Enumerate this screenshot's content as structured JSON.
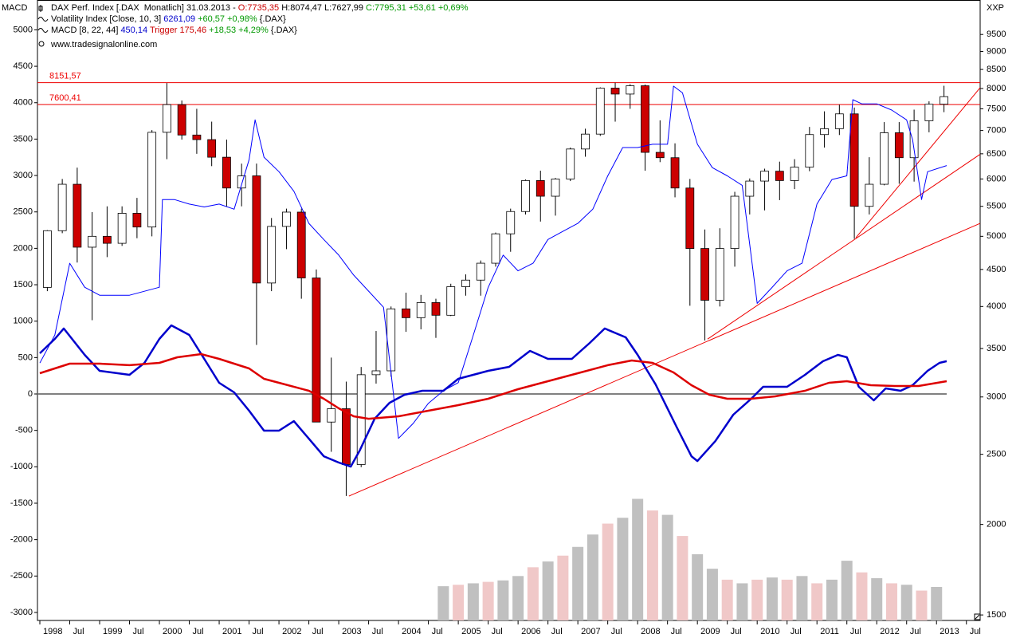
{
  "chart_data": {
    "type": "candlestick",
    "axis_title_left": "MACD",
    "axis_title_right": "XXP",
    "legend": [
      [
        {
          "text": "DAX Perf. Index [.DAX  Monatlich] 31.03.2013 - ",
          "color": "#000000"
        },
        {
          "text": "O:7735,35",
          "color": "#cc0000"
        },
        {
          "text": " H:8074,47 L:7627,99 ",
          "color": "#000000"
        },
        {
          "text": "C:7795,31 +53,61 +0,69%",
          "color": "#009900"
        }
      ],
      [
        {
          "text": "Volatility Index [Close, 10, 3] ",
          "color": "#000000"
        },
        {
          "text": "6261,09",
          "color": "#0000cc"
        },
        {
          "text": " +60,57 +0,98%",
          "color": "#009900"
        },
        {
          "text": " {.DAX}",
          "color": "#000000"
        }
      ],
      [
        {
          "text": "MACD [8, 22, 44] ",
          "color": "#000000"
        },
        {
          "text": "450,14",
          "color": "#0000cc"
        },
        {
          "text": " Trigger 175,46",
          "color": "#cc0000"
        },
        {
          "text": " +18,53 +4,29%",
          "color": "#009900"
        },
        {
          "text": " {.DAX}",
          "color": "#000000"
        }
      ],
      [
        {
          "text": "www.tradesignalonline.com",
          "color": "#000000"
        }
      ]
    ],
    "xlim": [
      1997.96,
      2013.73
    ],
    "xticks": [
      1998,
      {
        "value": 1998.5,
        "label": "Jul"
      },
      1999,
      {
        "value": 1999.5,
        "label": "Jul"
      },
      2000,
      {
        "value": 2000.5,
        "label": "Jul"
      },
      2001,
      {
        "value": 2001.5,
        "label": "Jul"
      },
      2002,
      {
        "value": 2002.5,
        "label": "Jul"
      },
      2003,
      {
        "value": 2003.5,
        "label": "Jul"
      },
      2004,
      {
        "value": 2004.5,
        "label": "Jul"
      },
      2005,
      {
        "value": 2005.5,
        "label": "Jul"
      },
      2006,
      {
        "value": 2006.5,
        "label": "Jul"
      },
      2007,
      {
        "value": 2007.5,
        "label": "Jul"
      },
      2008,
      {
        "value": 2008.5,
        "label": "Jul"
      },
      2009,
      {
        "value": 2009.5,
        "label": "Jul"
      },
      2010,
      {
        "value": 2010.5,
        "label": "Jul"
      },
      2011,
      {
        "value": 2011.5,
        "label": "Jul"
      },
      2012,
      {
        "value": 2012.5,
        "label": "Jul"
      },
      2013,
      {
        "value": 2013.5,
        "label": "Jul"
      }
    ],
    "ylim": [
      -3110,
      5410
    ],
    "yticks": [
      -3000,
      -2500,
      -2000,
      -1500,
      -1000,
      -500,
      0,
      500,
      1000,
      1500,
      2000,
      2500,
      3000,
      3500,
      4000,
      4500,
      5000
    ],
    "y2lim": [
      1474,
      10600
    ],
    "y2_log": true,
    "y2ticks": [
      1500,
      2000,
      2500,
      3000,
      3500,
      4000,
      4500,
      5000,
      5500,
      6000,
      6500,
      7000,
      7500,
      8000,
      8500,
      9000,
      9500
    ],
    "zero_line": 0,
    "candles": {
      "axis": "y2",
      "up_color": "#ffffff",
      "down_color": "#cc0000",
      "x": [
        1998.125,
        1998.375,
        1998.625,
        1998.875,
        1999.125,
        1999.375,
        1999.625,
        1999.875,
        2000.125,
        2000.375,
        2000.625,
        2000.875,
        2001.125,
        2001.375,
        2001.625,
        2001.875,
        2002.125,
        2002.375,
        2002.625,
        2002.875,
        2003.125,
        2003.375,
        2003.625,
        2003.875,
        2004.125,
        2004.375,
        2004.625,
        2004.875,
        2005.125,
        2005.375,
        2005.625,
        2005.875,
        2006.125,
        2006.375,
        2006.625,
        2006.875,
        2007.125,
        2007.375,
        2007.625,
        2007.875,
        2008.125,
        2008.375,
        2008.625,
        2008.875,
        2009.125,
        2009.375,
        2009.625,
        2009.875,
        2010.125,
        2010.375,
        2010.625,
        2010.875,
        2011.125,
        2011.375,
        2011.625,
        2011.875,
        2012.125,
        2012.375,
        2012.625,
        2012.875,
        2013.125
      ],
      "open": [
        4250,
        5090,
        5900,
        4830,
        5000,
        4890,
        5380,
        5150,
        6960,
        7600,
        6900,
        6800,
        6430,
        5830,
        6060,
        4310,
        5160,
        5400,
        4380,
        2770,
        2890,
        2420,
        3220,
        3260,
        3970,
        3860,
        4050,
        3890,
        4260,
        4350,
        4590,
        5040,
        5410,
        5970,
        5680,
        6000,
        6600,
        6920,
        8010,
        7860,
        8070,
        6530,
        6420,
        5830,
        4810,
        4080,
        4810,
        5680,
        5960,
        6150,
        5970,
        6230,
        6910,
        7040,
        7380,
        5500,
        5900,
        6950,
        6420,
        7220,
        7610
      ],
      "high": [
        5100,
        6000,
        6220,
        5400,
        5500,
        5500,
        5650,
        7010,
        8140,
        7700,
        7500,
        7200,
        6800,
        6300,
        6300,
        5300,
        5460,
        5460,
        4500,
        3400,
        3150,
        3300,
        3700,
        4000,
        4180,
        4150,
        4100,
        4300,
        4430,
        4630,
        5060,
        5460,
        5990,
        6160,
        6020,
        6630,
        7040,
        8030,
        8150,
        8110,
        8100,
        7230,
        6720,
        6000,
        5110,
        5130,
        5760,
        6010,
        6200,
        6340,
        6390,
        7080,
        7440,
        7600,
        7530,
        6430,
        7190,
        7190,
        7480,
        7680,
        8070
      ],
      "low": [
        4200,
        5050,
        4600,
        3830,
        4680,
        4850,
        4970,
        5000,
        6390,
        6800,
        6500,
        6250,
        5500,
        5500,
        3540,
        4200,
        4800,
        4100,
        2770,
        2520,
        2190,
        2400,
        3130,
        3200,
        3690,
        3720,
        3620,
        3880,
        4140,
        4140,
        4540,
        4760,
        5360,
        5240,
        5340,
        5960,
        6440,
        6880,
        7200,
        7500,
        6160,
        6330,
        5660,
        4010,
        3590,
        4000,
        4540,
        5360,
        5430,
        5610,
        5810,
        6150,
        6630,
        6900,
        4960,
        5360,
        5880,
        5910,
        5950,
        6960,
        7420
      ],
      "close": [
        5090,
        5900,
        4830,
        5000,
        4890,
        5380,
        5150,
        6960,
        7600,
        6900,
        6800,
        6430,
        5830,
        6060,
        4310,
        5160,
        5400,
        4380,
        2770,
        2890,
        2420,
        3220,
        3260,
        3970,
        3860,
        4050,
        3890,
        4260,
        4350,
        4590,
        5040,
        5410,
        5970,
        5680,
        6000,
        6600,
        6920,
        8010,
        7860,
        8070,
        6530,
        6420,
        5830,
        4810,
        4080,
        4810,
        5680,
        5960,
        6150,
        5970,
        6230,
        6910,
        7040,
        7380,
        5500,
        5900,
        6950,
        6420,
        7220,
        7610,
        7795.31
      ]
    },
    "series": [
      {
        "axis": "y2",
        "color": "#0000ff",
        "width": 1,
        "x": [
          1998.0,
          1998.25,
          1998.5,
          1998.75,
          1999.0,
          1999.5,
          2000.0,
          2000.05,
          2000.25,
          2000.5,
          2000.75,
          2001.0,
          2001.25,
          2001.5,
          2001.6,
          2001.75,
          2002.0,
          2002.25,
          2002.5,
          2002.75,
          2003.0,
          2003.25,
          2003.5,
          2003.75,
          2004.0,
          2004.25,
          2004.5,
          2004.75,
          2005.0,
          2005.25,
          2005.5,
          2005.75,
          2006.0,
          2006.25,
          2006.5,
          2006.75,
          2007.0,
          2007.25,
          2007.5,
          2007.75,
          2008.0,
          2008.25,
          2008.5,
          2008.6,
          2008.75,
          2009.0,
          2009.25,
          2009.5,
          2009.75,
          2010.0,
          2010.25,
          2010.5,
          2010.75,
          2011.0,
          2011.25,
          2011.5,
          2011.6,
          2011.75,
          2012.0,
          2012.25,
          2012.5,
          2012.6,
          2012.75,
          2012.85,
          2013.17
        ],
        "values": [
          3342,
          3653,
          4589,
          4252,
          4146,
          4146,
          4252,
          5620,
          5620,
          5540,
          5490,
          5540,
          5450,
          6380,
          7240,
          6430,
          6140,
          5770,
          5210,
          4950,
          4710,
          4420,
          4200,
          3990,
          2630,
          2760,
          2940,
          3060,
          3140,
          3650,
          4250,
          4710,
          4480,
          4590,
          4950,
          5080,
          5210,
          5450,
          6060,
          6630,
          6630,
          6700,
          6700,
          8060,
          7890,
          6700,
          6220,
          6060,
          5880,
          4040,
          4250,
          4480,
          4590,
          5540,
          5990,
          6060,
          7720,
          7620,
          7620,
          7470,
          7240,
          6800,
          5620,
          6140,
          6261.09
        ]
      },
      {
        "axis": "y",
        "color": "#0000cc",
        "width": 2.5,
        "x": [
          1998.0,
          1998.25,
          1998.4,
          1998.75,
          1999.0,
          1999.5,
          1999.75,
          2000.0,
          2000.2,
          2000.5,
          2000.75,
          2001.0,
          2001.25,
          2001.5,
          2001.75,
          2002.0,
          2002.25,
          2002.5,
          2002.75,
          2003.0,
          2003.2,
          2003.35,
          2003.6,
          2003.85,
          2004.1,
          2004.4,
          2004.75,
          2005.0,
          2005.5,
          2005.85,
          2006.2,
          2006.5,
          2006.9,
          2007.2,
          2007.45,
          2007.8,
          2008.0,
          2008.3,
          2008.65,
          2008.9,
          2009.0,
          2009.3,
          2009.6,
          2009.9,
          2010.1,
          2010.5,
          2010.8,
          2011.1,
          2011.35,
          2011.5,
          2011.7,
          2011.95,
          2012.15,
          2012.4,
          2012.6,
          2012.85,
          2013.05,
          2013.17
        ],
        "values": [
          559,
          756,
          899,
          537,
          318,
          263,
          427,
          756,
          942,
          811,
          482,
          153,
          22,
          -230,
          -504,
          -504,
          -373,
          -614,
          -855,
          -942,
          -997,
          -778,
          -340,
          -121,
          -11,
          44,
          44,
          208,
          318,
          373,
          592,
          482,
          482,
          701,
          899,
          778,
          537,
          132,
          -449,
          -855,
          -921,
          -647,
          -285,
          -66,
          99,
          99,
          263,
          449,
          537,
          504,
          99,
          -88,
          77,
          44,
          121,
          318,
          427,
          450.14
        ]
      },
      {
        "axis": "y",
        "color": "#dd0000",
        "width": 2.5,
        "x": [
          1998.0,
          1998.5,
          1999.0,
          1999.5,
          2000.0,
          2000.3,
          2000.7,
          2001.0,
          2001.5,
          2001.75,
          2002.0,
          2002.5,
          2002.75,
          2003.0,
          2003.25,
          2003.5,
          2004.0,
          2004.5,
          2005.0,
          2005.5,
          2006.0,
          2006.5,
          2007.0,
          2007.5,
          2007.9,
          2008.25,
          2008.6,
          2008.9,
          2009.2,
          2009.5,
          2009.9,
          2010.3,
          2010.8,
          2011.2,
          2011.5,
          2011.9,
          2012.3,
          2012.7,
          2013.17
        ],
        "values": [
          285,
          416,
          416,
          395,
          427,
          504,
          548,
          482,
          351,
          208,
          153,
          44,
          -66,
          -197,
          -307,
          -340,
          -307,
          -230,
          -153,
          -66,
          66,
          175,
          285,
          395,
          460,
          427,
          296,
          121,
          -11,
          -66,
          -66,
          -33,
          44,
          153,
          175,
          121,
          110,
          110,
          175.46
        ]
      }
    ],
    "volume": {
      "axis": "y",
      "x": [
        2004.75,
        2005.0,
        2005.25,
        2005.5,
        2005.75,
        2006.0,
        2006.25,
        2006.5,
        2006.75,
        2007.0,
        2007.25,
        2007.5,
        2007.75,
        2008.0,
        2008.25,
        2008.5,
        2008.75,
        2009.0,
        2009.25,
        2009.5,
        2009.75,
        2010.0,
        2010.25,
        2010.5,
        2010.75,
        2011.0,
        2011.25,
        2011.5,
        2011.75,
        2012.0,
        2012.25,
        2012.5,
        2012.75,
        2013.0
      ],
      "values": [
        -2640,
        -2620,
        -2600,
        -2580,
        -2560,
        -2500,
        -2380,
        -2300,
        -2220,
        -2100,
        -1930,
        -1780,
        -1700,
        -1440,
        -1600,
        -1660,
        -1950,
        -2200,
        -2400,
        -2550,
        -2600,
        -2550,
        -2520,
        -2550,
        -2500,
        -2600,
        -2550,
        -2290,
        -2450,
        -2530,
        -2600,
        -2620,
        -2700,
        -2650
      ],
      "colors": [
        "#c0c0c0",
        "#f0c8c8",
        "#c0c0c0",
        "#f0c8c8",
        "#c0c0c0",
        "#c0c0c0",
        "#f0c8c8",
        "#c0c0c0",
        "#f0c8c8",
        "#c0c0c0",
        "#c0c0c0",
        "#f0c8c8",
        "#c0c0c0",
        "#c0c0c0",
        "#f0c8c8",
        "#c0c0c0",
        "#f0c8c8",
        "#c0c0c0",
        "#c0c0c0",
        "#f0c8c8",
        "#c0c0c0",
        "#f0c8c8",
        "#c0c0c0",
        "#f0c8c8",
        "#c0c0c0",
        "#f0c8c8",
        "#c0c0c0",
        "#c0c0c0",
        "#f0c8c8",
        "#c0c0c0",
        "#f0c8c8",
        "#c0c0c0",
        "#f0c8c8",
        "#c0c0c0"
      ]
    },
    "levels": {
      "axis": "y2",
      "color": "#ee0000",
      "values": [
        {
          "value": 8151.57,
          "label": "8151,57"
        },
        {
          "value": 7600.41,
          "label": "7600,41"
        }
      ]
    },
    "trend_lines": {
      "axis": "y2",
      "color": "#ee0000",
      "lines": [
        {
          "x": [
            2003.17,
            2013.73
          ],
          "values": [
            2189,
            5210
          ]
        },
        {
          "x": [
            2009.17,
            2013.73
          ],
          "values": [
            3606,
            6490
          ]
        },
        {
          "x": [
            2011.65,
            2013.73
          ],
          "values": [
            4976,
            8020
          ]
        }
      ]
    }
  }
}
